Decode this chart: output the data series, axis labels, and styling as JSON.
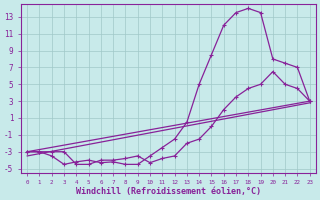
{
  "background_color": "#c8eaea",
  "grid_color": "#a0c8c8",
  "line_color": "#882299",
  "xlabel": "Windchill (Refroidissement éolien,°C)",
  "xlabel_fontsize": 6.0,
  "xlim": [
    -0.5,
    23.5
  ],
  "ylim": [
    -5.5,
    14.5
  ],
  "ytick_values": [
    -5,
    -3,
    -1,
    1,
    3,
    5,
    7,
    9,
    11,
    13
  ],
  "xtick_labels": [
    "0",
    "1",
    "2",
    "3",
    "4",
    "5",
    "6",
    "7",
    "8",
    "9",
    "10",
    "11",
    "12",
    "13",
    "14",
    "15",
    "16",
    "17",
    "18",
    "19",
    "20",
    "21",
    "22",
    "23"
  ],
  "curve_peak_x": [
    0,
    1,
    2,
    3,
    4,
    5,
    6,
    7,
    8,
    9,
    10,
    11,
    12,
    13,
    14,
    15,
    16,
    17,
    18,
    19,
    20,
    21,
    22,
    23
  ],
  "curve_peak_y": [
    -3.0,
    -3.0,
    -3.5,
    -4.5,
    -4.2,
    -4.0,
    -4.3,
    -4.2,
    -4.5,
    -4.5,
    -3.5,
    -2.5,
    -1.5,
    0.5,
    5.0,
    8.5,
    12.0,
    13.5,
    14.0,
    13.5,
    8.0,
    7.5,
    7.0,
    3.0
  ],
  "curve_low_x": [
    0,
    1,
    2,
    3,
    4,
    5,
    6,
    7,
    8,
    9,
    10,
    11,
    12,
    13,
    14,
    15,
    16,
    17,
    18,
    19,
    20,
    21,
    22,
    23
  ],
  "curve_low_y": [
    -3.0,
    -3.0,
    -3.0,
    -3.0,
    -4.5,
    -4.5,
    -4.0,
    -4.0,
    -3.8,
    -3.5,
    -4.3,
    -3.8,
    -3.5,
    -2.0,
    -1.5,
    0.0,
    2.0,
    3.5,
    4.5,
    5.0,
    6.5,
    5.0,
    4.5,
    3.0
  ],
  "line1_x": [
    0,
    23
  ],
  "line1_y": [
    -3.0,
    3.0
  ],
  "line2_x": [
    0,
    23
  ],
  "line2_y": [
    -3.5,
    2.8
  ]
}
